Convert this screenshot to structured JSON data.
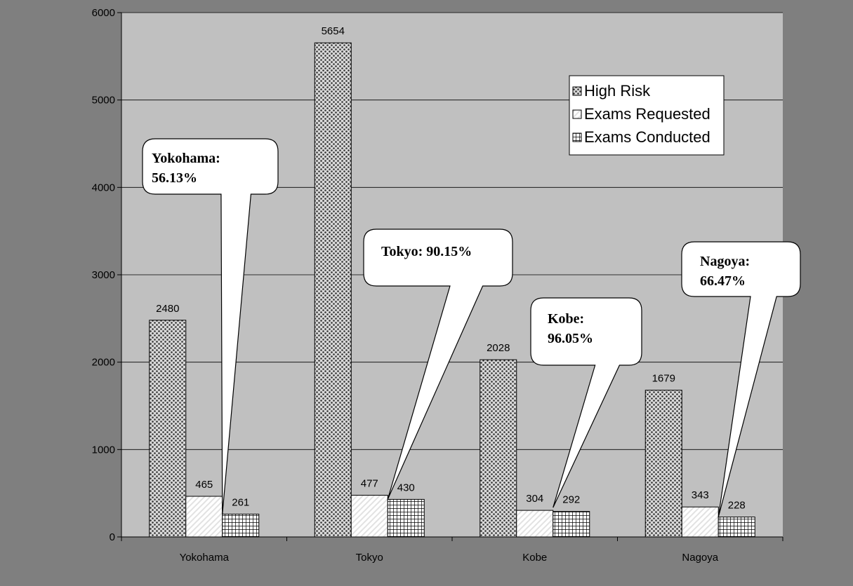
{
  "chart_data": {
    "type": "bar",
    "categories": [
      "Yokohama",
      "Tokyo",
      "Kobe",
      "Nagoya"
    ],
    "series": [
      {
        "name": "High Risk",
        "values": [
          2480,
          5654,
          2028,
          1679
        ],
        "pattern": "dots"
      },
      {
        "name": "Exams Requested",
        "values": [
          465,
          477,
          304,
          343
        ],
        "pattern": "hatch"
      },
      {
        "name": "Exams Conducted",
        "values": [
          261,
          430,
          292,
          228
        ],
        "pattern": "grid"
      }
    ],
    "ylim": [
      0,
      6000
    ],
    "yticks": [
      0,
      1000,
      2000,
      3000,
      4000,
      5000,
      6000
    ],
    "grid": true,
    "legend_position": "top-right",
    "data_labels": true,
    "callouts": [
      {
        "category": "Yokohama",
        "lines": [
          "Yokohama:",
          "56.13%"
        ]
      },
      {
        "category": "Tokyo",
        "lines": [
          "Tokyo: 90.15%"
        ]
      },
      {
        "category": "Kobe",
        "lines": [
          "Kobe:",
          "96.05%"
        ]
      },
      {
        "category": "Nagoya",
        "lines": [
          "Nagoya:",
          "66.47%"
        ]
      }
    ]
  },
  "colors": {
    "outer_background": "#7f7f7f",
    "plot_background": "#c0c0c0",
    "gridline": "#000000",
    "bar_outline": "#000000",
    "callout_fill": "#ffffff",
    "legend_fill": "#ffffff"
  }
}
